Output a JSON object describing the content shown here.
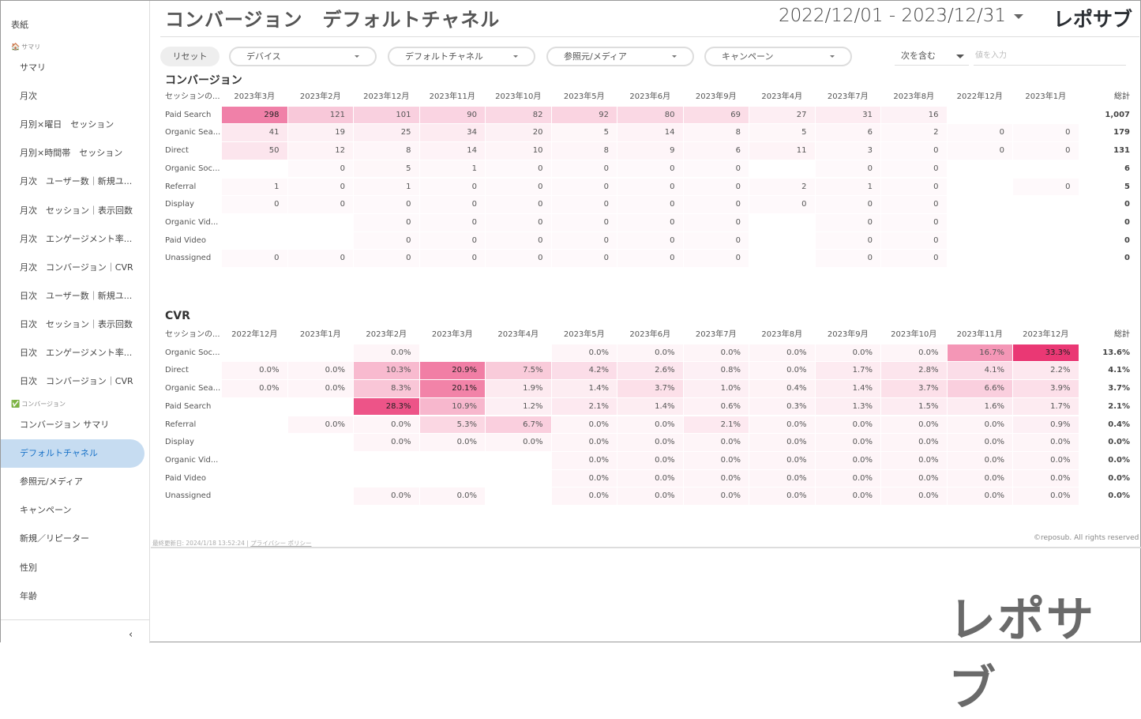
{
  "sidebar": {
    "cover": "表紙",
    "section_summary": "サマリ",
    "summary_items": [
      "サマリ",
      "月次",
      "月別×曜日　セッション",
      "月別×時間帯　セッション",
      "月次　ユーザー数｜新規ユ...",
      "月次　セッション｜表示回数",
      "月次　エンゲージメント率...",
      "月次　コンバージョン｜CVR",
      "日次　ユーザー数｜新規ユ...",
      "日次　セッション｜表示回数",
      "日次　エンゲージメント率...",
      "日次　コンバージョン｜CVR"
    ],
    "section_conversion": "コンバージョン",
    "conversion_items": [
      "コンバージョン サマリ",
      "デフォルトチャネル",
      "参照元/メディア",
      "キャンペーン",
      "新規／リピーター",
      "性別",
      "年齢"
    ],
    "active_item": "デフォルトチャネル",
    "collapse": "‹"
  },
  "header": {
    "title": "コンバージョン　デフォルトチャネル",
    "date_range": "2022/12/01 - 2023/12/31",
    "logo": "レポサブ"
  },
  "filters": {
    "reset": "リセット",
    "device": "デバイス",
    "channel": "デフォルトチャネル",
    "source_medium": "参照元/メディア",
    "campaign": "キャンペーン",
    "match_type": "次を含む",
    "value_placeholder": "値を入力"
  },
  "colors": {
    "accent": "#e8336f",
    "active_bg": "#c6dcf1"
  },
  "conversion": {
    "title": "コンバージョン",
    "dim_header": "セッションの...",
    "total_header": "総計",
    "columns": [
      "2023年3月",
      "2023年2月",
      "2023年12月",
      "2023年11月",
      "2023年10月",
      "2023年5月",
      "2023年6月",
      "2023年9月",
      "2023年4月",
      "2023年7月",
      "2023年8月",
      "2022年12月",
      "2023年1月"
    ],
    "rows": [
      {
        "label": "Paid Search",
        "values": [
          "298",
          "121",
          "101",
          "90",
          "82",
          "92",
          "80",
          "69",
          "27",
          "31",
          "16",
          null,
          null
        ],
        "total": "1,007"
      },
      {
        "label": "Organic Sea...",
        "values": [
          "41",
          "19",
          "25",
          "34",
          "20",
          "5",
          "14",
          "8",
          "5",
          "6",
          "2",
          "0",
          "0"
        ],
        "total": "179"
      },
      {
        "label": "Direct",
        "values": [
          "50",
          "12",
          "8",
          "14",
          "10",
          "8",
          "9",
          "6",
          "11",
          "3",
          "0",
          "0",
          "0"
        ],
        "total": "131"
      },
      {
        "label": "Organic Soc...",
        "values": [
          null,
          "0",
          "5",
          "1",
          "0",
          "0",
          "0",
          "0",
          null,
          "0",
          "0",
          null,
          null
        ],
        "total": "6"
      },
      {
        "label": "Referral",
        "values": [
          "1",
          "0",
          "1",
          "0",
          "0",
          "0",
          "0",
          "0",
          "2",
          "1",
          "0",
          null,
          "0"
        ],
        "total": "5"
      },
      {
        "label": "Display",
        "values": [
          "0",
          "0",
          "0",
          "0",
          "0",
          "0",
          "0",
          "0",
          "0",
          "0",
          "0",
          null,
          null
        ],
        "total": "0"
      },
      {
        "label": "Organic Vid...",
        "values": [
          null,
          null,
          "0",
          "0",
          "0",
          "0",
          "0",
          "0",
          null,
          "0",
          "0",
          null,
          null
        ],
        "total": "0"
      },
      {
        "label": "Paid Video",
        "values": [
          null,
          null,
          "0",
          "0",
          "0",
          "0",
          "0",
          "0",
          null,
          "0",
          "0",
          null,
          null
        ],
        "total": "0"
      },
      {
        "label": "Unassigned",
        "values": [
          "0",
          "0",
          "0",
          "0",
          "0",
          "0",
          "0",
          "0",
          null,
          "0",
          "0",
          null,
          null
        ],
        "total": "0"
      }
    ]
  },
  "cvr": {
    "title": "CVR",
    "dim_header": "セッションの...",
    "total_header": "総計",
    "columns": [
      "2022年12月",
      "2023年1月",
      "2023年2月",
      "2023年3月",
      "2023年4月",
      "2023年5月",
      "2023年6月",
      "2023年7月",
      "2023年8月",
      "2023年9月",
      "2023年10月",
      "2023年11月",
      "2023年12月"
    ],
    "rows": [
      {
        "label": "Organic Soc...",
        "values": [
          null,
          null,
          "0.0%",
          null,
          null,
          "0.0%",
          "0.0%",
          "0.0%",
          "0.0%",
          "0.0%",
          "0.0%",
          "16.7%",
          "33.3%"
        ],
        "total": "13.6%"
      },
      {
        "label": "Direct",
        "values": [
          "0.0%",
          "0.0%",
          "10.3%",
          "20.9%",
          "7.5%",
          "4.2%",
          "2.6%",
          "0.8%",
          "0.0%",
          "1.7%",
          "2.8%",
          "4.1%",
          "2.2%"
        ],
        "total": "4.1%"
      },
      {
        "label": "Organic Sea...",
        "values": [
          "0.0%",
          "0.0%",
          "8.3%",
          "20.1%",
          "1.9%",
          "1.4%",
          "3.7%",
          "1.0%",
          "0.4%",
          "1.4%",
          "3.7%",
          "6.6%",
          "3.9%"
        ],
        "total": "3.7%"
      },
      {
        "label": "Paid Search",
        "values": [
          null,
          null,
          "28.3%",
          "10.9%",
          "1.2%",
          "2.1%",
          "1.4%",
          "0.6%",
          "0.3%",
          "1.3%",
          "1.5%",
          "1.6%",
          "1.7%"
        ],
        "total": "2.1%"
      },
      {
        "label": "Referral",
        "values": [
          null,
          "0.0%",
          "0.0%",
          "5.3%",
          "6.7%",
          "0.0%",
          "0.0%",
          "2.1%",
          "0.0%",
          "0.0%",
          "0.0%",
          "0.0%",
          "0.9%"
        ],
        "total": "0.4%"
      },
      {
        "label": "Display",
        "values": [
          null,
          null,
          "0.0%",
          "0.0%",
          "0.0%",
          "0.0%",
          "0.0%",
          "0.0%",
          "0.0%",
          "0.0%",
          "0.0%",
          "0.0%",
          "0.0%"
        ],
        "total": "0.0%"
      },
      {
        "label": "Organic Vid...",
        "values": [
          null,
          null,
          null,
          null,
          null,
          "0.0%",
          "0.0%",
          "0.0%",
          "0.0%",
          "0.0%",
          "0.0%",
          "0.0%",
          "0.0%"
        ],
        "total": "0.0%"
      },
      {
        "label": "Paid Video",
        "values": [
          null,
          null,
          null,
          null,
          null,
          "0.0%",
          "0.0%",
          "0.0%",
          "0.0%",
          "0.0%",
          "0.0%",
          "0.0%",
          "0.0%"
        ],
        "total": "0.0%"
      },
      {
        "label": "Unassigned",
        "values": [
          null,
          null,
          "0.0%",
          "0.0%",
          null,
          "0.0%",
          "0.0%",
          "0.0%",
          "0.0%",
          "0.0%",
          "0.0%",
          "0.0%",
          "0.0%"
        ],
        "total": "0.0%"
      }
    ]
  },
  "footer": {
    "last_updated": "最終更新日: 2024/1/18 13:52:24",
    "separator": "|",
    "privacy": "プライバシー ポリシー",
    "copyright": "©reposub. All rights reserved"
  }
}
